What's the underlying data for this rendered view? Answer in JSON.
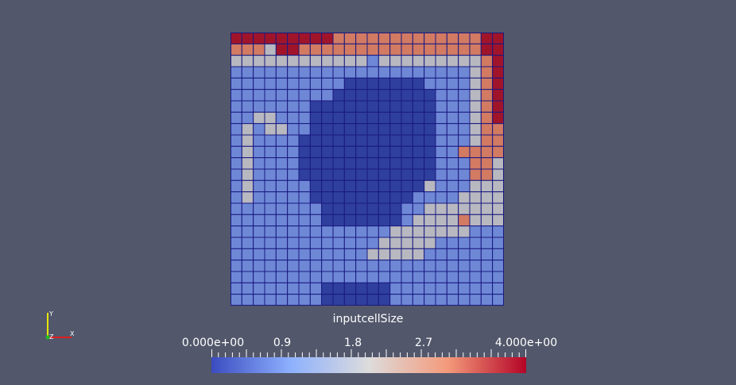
{
  "scalar_bar": {
    "title": "inputcellSize",
    "ticks": [
      {
        "value": 0.0,
        "label": "0.000e+00"
      },
      {
        "value": 0.9,
        "label": "0.9"
      },
      {
        "value": 1.8,
        "label": "1.8"
      },
      {
        "value": 2.7,
        "label": "2.7"
      },
      {
        "value": 4.0,
        "label": "4.000e+00"
      }
    ],
    "range": [
      0,
      4
    ],
    "colormap": [
      "#3b4cc0",
      "#8db0fe",
      "#dddcdc",
      "#f49a7b",
      "#b40426"
    ]
  },
  "axes": {
    "x": "X",
    "y": "Y",
    "z": "Z"
  },
  "mesh": {
    "columns": 24,
    "rows": 24,
    "grid_color": "#1a1a80",
    "cell_colors": {
      "0": "#2f3f9e",
      "1": "#6e88d6",
      "2": "#b8b8c0",
      "3": "#d27a62",
      "4": "#a0142a"
    },
    "cells": [
      "444444444333333333333344",
      "333244333333333333333344",
      "222222222222122222222234",
      "111111111111111111111234",
      "111111111100000001111234",
      "111111111000000000111234",
      "111111100000000000111234",
      "112211100000000000111234",
      "121221100000000000111233",
      "121111000000000000111233",
      "121111000000000000113333",
      "121111000000000000111332",
      "121111000000000000111332",
      "121111100000000002111222",
      "121111100000000011112222",
      "111111110000000112222222",
      "111111110000000122223222",
      "111111111111112222222111",
      "111111111111122222111111",
      "111111111111222221111111",
      "111111111111111111111111",
      "111111111111111111111111",
      "111111110000001111111111",
      "111111110000001111111111"
    ]
  }
}
